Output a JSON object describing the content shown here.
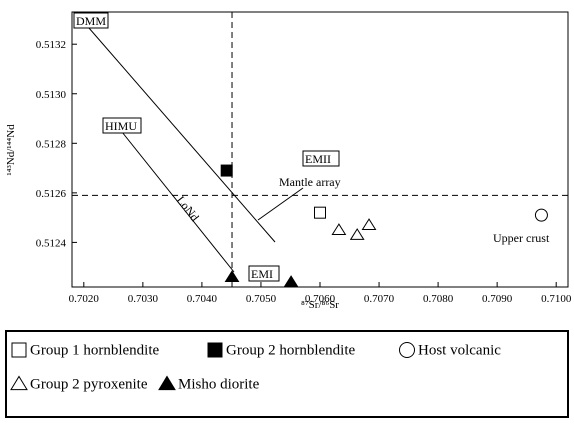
{
  "chart_data": {
    "type": "scatter",
    "x_label": "⁸⁷Sr/⁸⁶Sr",
    "y_label": "¹⁴³Nd/¹⁴⁴Nd",
    "xlim": [
      0.7018,
      0.7102
    ],
    "ylim": [
      0.51222,
      0.51333
    ],
    "xticks": [
      {
        "value": 0.702,
        "label": "0.7020"
      },
      {
        "value": 0.703,
        "label": "0.7030"
      },
      {
        "value": 0.704,
        "label": "0.7040"
      },
      {
        "value": 0.705,
        "label": "0.7050"
      },
      {
        "value": 0.706,
        "label": "0.7060"
      },
      {
        "value": 0.707,
        "label": "0.7070"
      },
      {
        "value": 0.708,
        "label": "0.7080"
      },
      {
        "value": 0.709,
        "label": "0.7090"
      },
      {
        "value": 0.71,
        "label": "0.7100"
      }
    ],
    "yticks": [
      {
        "value": 0.5124,
        "label": "0.5124"
      },
      {
        "value": 0.5126,
        "label": "0.5126"
      },
      {
        "value": 0.5128,
        "label": "0.5128"
      },
      {
        "value": 0.513,
        "label": "0.5130"
      },
      {
        "value": 0.5132,
        "label": "0.5132"
      }
    ],
    "reference_lines": {
      "x": 0.70451,
      "y": 0.51259
    },
    "series": [
      {
        "name": "Group 1 hornblendite",
        "marker": "square-open",
        "color": "#000000",
        "x": [
          0.706
        ],
        "y": [
          0.51252
        ]
      },
      {
        "name": "Group 2 hornblendite",
        "marker": "square-filled",
        "color": "#000000",
        "x": [
          0.70442
        ],
        "y": [
          0.51269
        ]
      },
      {
        "name": "Host volcanic",
        "marker": "circle-open",
        "color": "#000000",
        "x": [
          0.70975
        ],
        "y": [
          0.51251
        ]
      },
      {
        "name": "Group 2 pyroxenite",
        "marker": "triangle-open",
        "color": "#000000",
        "x": [
          0.70632,
          0.70663,
          0.70683
        ],
        "y": [
          0.51245,
          0.51243,
          0.51247
        ]
      },
      {
        "name": "Misho diorite",
        "marker": "triangle-filled",
        "color": "#000000",
        "x": [
          0.70451,
          0.70551
        ],
        "y": [
          0.51226,
          0.51224
        ]
      }
    ],
    "annotations": {
      "dmm": "DMM",
      "himu": "HIMU",
      "emii": "EMII",
      "emi": "EMI",
      "mantle_array": "Mantle array",
      "lond": "LoNd",
      "upper_crust": "Upper crust"
    }
  }
}
